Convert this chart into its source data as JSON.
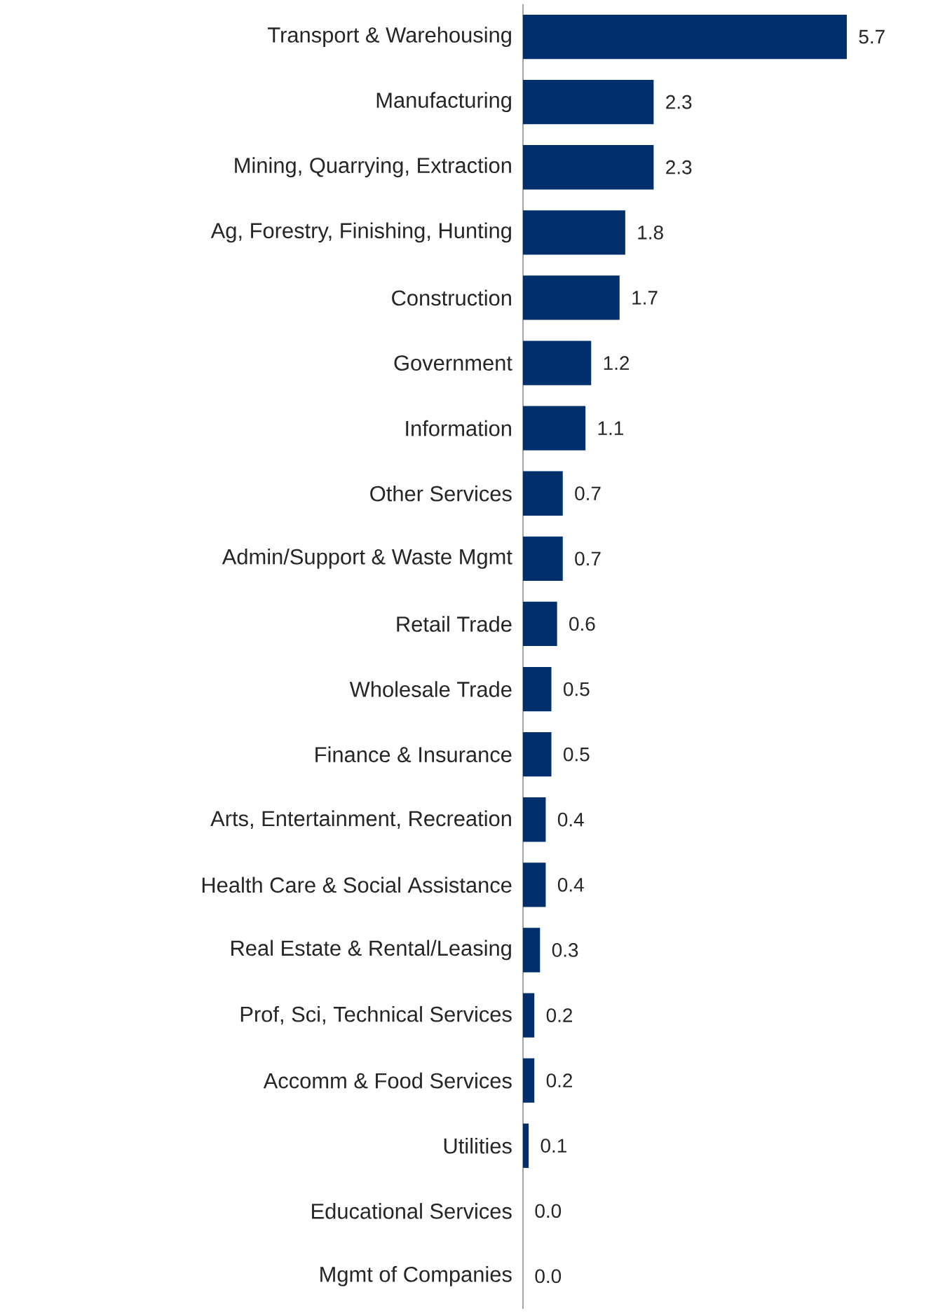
{
  "chart_data": {
    "type": "bar",
    "orientation": "horizontal",
    "categories": [
      "Transport & Warehousing",
      "Manufacturing",
      "Mining, Quarrying, Extraction",
      "Ag, Forestry, Finishing, Hunting",
      "Construction",
      "Government",
      "Information",
      "Other Services",
      "Admin/Support & Waste Mgmt",
      "Retail Trade",
      "Wholesale Trade",
      "Finance & Insurance",
      "Arts, Entertainment, Recreation",
      "Health Care & Social Assistance",
      "Real Estate & Rental/Leasing",
      "Prof, Sci, Technical Services",
      "Accomm & Food Services",
      "Utilities",
      "Educational Services",
      "Mgmt of Companies"
    ],
    "values": [
      5.7,
      2.3,
      2.3,
      1.8,
      1.7,
      1.2,
      1.1,
      0.7,
      0.7,
      0.6,
      0.5,
      0.5,
      0.4,
      0.4,
      0.3,
      0.2,
      0.2,
      0.1,
      0.0,
      0.0
    ],
    "value_labels": [
      "5.7",
      "2.3",
      "2.3",
      "1.8",
      "1.7",
      "1.2",
      "1.1",
      "0.7",
      "0.7",
      "0.6",
      "0.5",
      "0.5",
      "0.4",
      "0.4",
      "0.3",
      "0.2",
      "0.2",
      "0.1",
      "0.0",
      "0.0"
    ],
    "color": "#002f6c"
  }
}
